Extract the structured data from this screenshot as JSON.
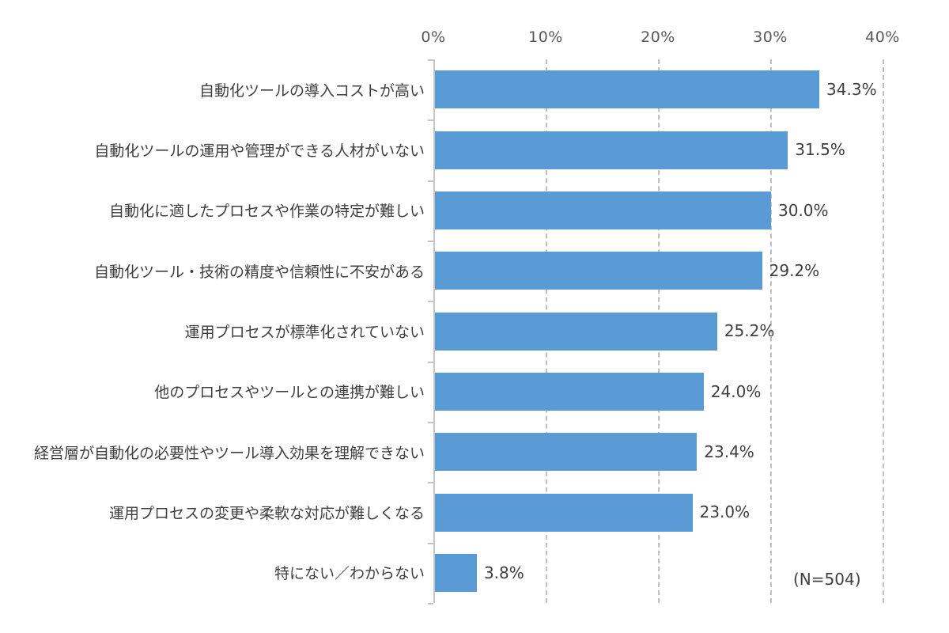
{
  "chart_data": {
    "type": "bar",
    "orientation": "horizontal",
    "title": "",
    "xlabel": "",
    "ylabel": "",
    "xlim": [
      0,
      40
    ],
    "x_ticks": [
      "0%",
      "10%",
      "20%",
      "30%",
      "40%"
    ],
    "x_tick_values": [
      0,
      10,
      20,
      30,
      40
    ],
    "grid": "vertical-dashed",
    "legend": "none",
    "categories": [
      "自動化ツールの導入コストが高い",
      "自動化ツールの運用や管理ができる人材がいない",
      "自動化に適したプロセスや作業の特定が難しい",
      "自動化ツール・技術の精度や信頼性に不安がある",
      "運用プロセスが標準化されていない",
      "他のプロセスやツールとの連携が難しい",
      "経営層が自動化の必要性やツール導入効果を理解できない",
      "運用プロセスの変更や柔軟な対応が難しくなる",
      "特にない／わからない"
    ],
    "values": [
      34.3,
      31.5,
      30.0,
      29.2,
      25.2,
      24.0,
      23.4,
      23.0,
      3.8
    ],
    "value_labels": [
      "34.3%",
      "31.5%",
      "30.0%",
      "29.2%",
      "25.2%",
      "24.0%",
      "23.4%",
      "23.0%",
      "3.8%"
    ],
    "annotation": "(N=504)",
    "colors": {
      "bar": "#5B9BD5",
      "gridline": "#BFBFBF",
      "axis_line": "#C6C6C6",
      "tick_label": "#595959",
      "text": "#3F3F3F"
    }
  }
}
